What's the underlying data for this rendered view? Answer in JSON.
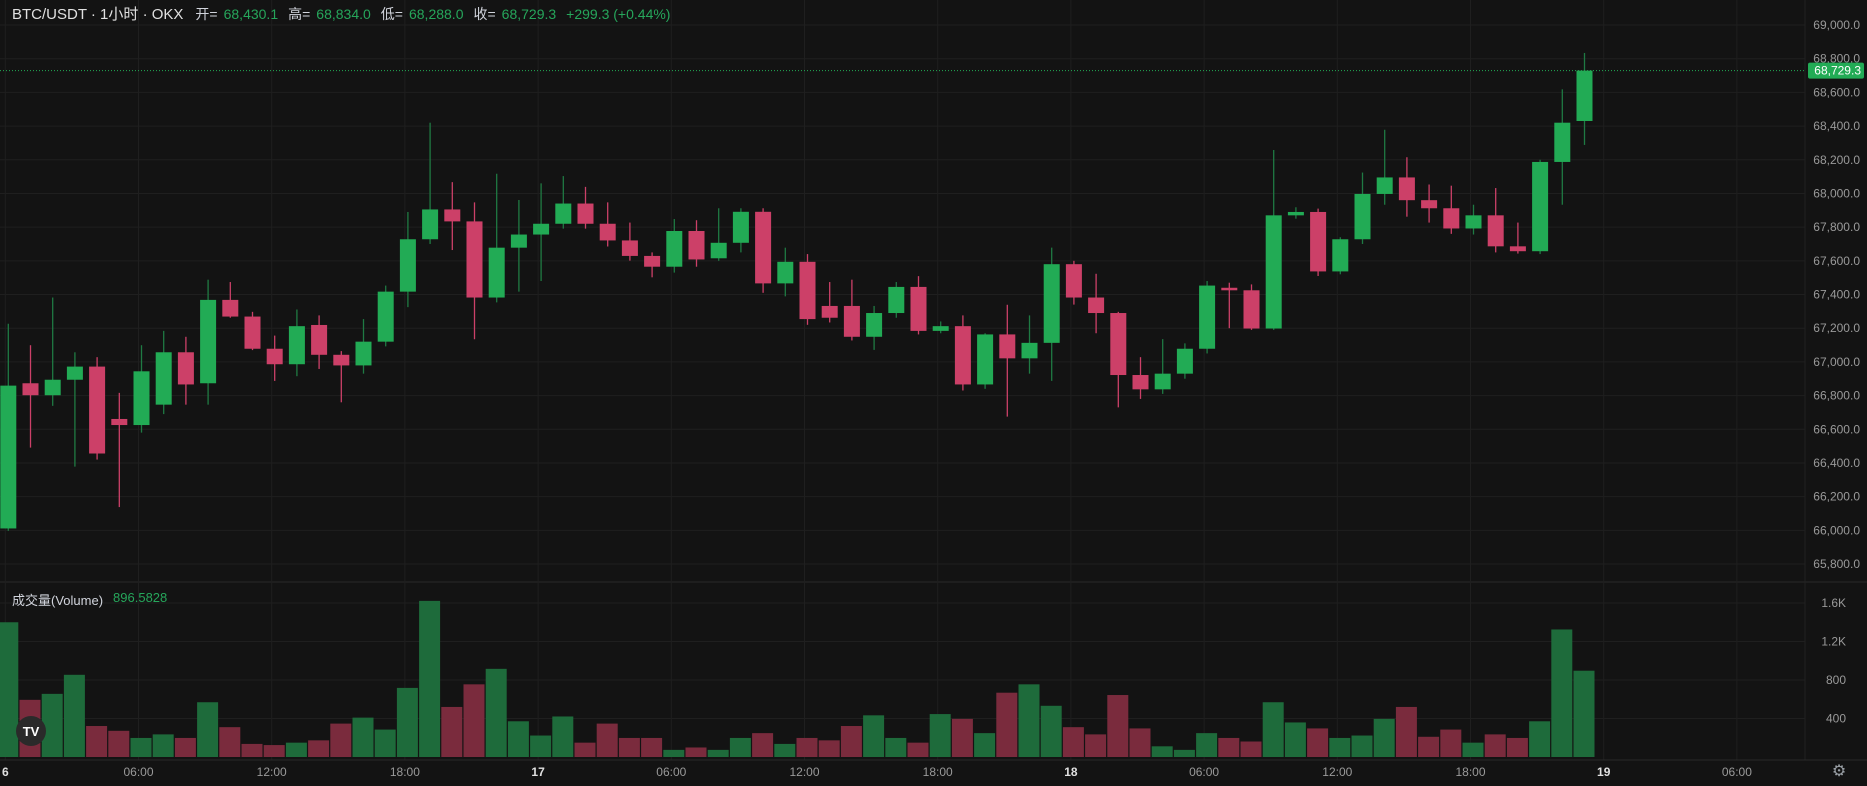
{
  "header": {
    "symbol": "BTC/USDT · 1小时 · OKX",
    "open_label": "开=",
    "open": "68,430.1",
    "high_label": "高=",
    "high": "68,834.0",
    "low_label": "低=",
    "low": "68,288.0",
    "close_label": "收=",
    "close": "68,729.3",
    "change": "+299.3 (+0.44%)"
  },
  "volume_legend": {
    "label": "成交量(Volume)",
    "value": "896.5828"
  },
  "logo": "TV",
  "icons": {
    "settings": "gear-icon",
    "logo": "tradingview-logo"
  },
  "colors": {
    "up": "#22ab55",
    "down": "#cc4068",
    "up_volume": "#1e6b3b",
    "down_volume": "#7a2b3d",
    "background": "#131313",
    "last_price": "#22ab55"
  },
  "chart_data": {
    "type": "candlestick",
    "price_axis": {
      "range": [
        65700,
        69080
      ],
      "ticks": [
        65800,
        66000,
        66200,
        66400,
        66600,
        66800,
        67000,
        67200,
        67400,
        67600,
        67800,
        68000,
        68200,
        68400,
        68600,
        68800,
        69000
      ],
      "tick_labels": [
        "65,800.0",
        "66,000.0",
        "66,200.0",
        "66,400.0",
        "66,600.0",
        "66,800.0",
        "67,000.0",
        "67,200.0",
        "67,400.0",
        "67,600.0",
        "67,800.0",
        "68,000.0",
        "68,200.0",
        "68,400.0",
        "68,600.0",
        "68,800.0",
        "69,000.0"
      ]
    },
    "volume_axis": {
      "range": [
        0,
        1900
      ],
      "ticks": [
        400,
        800,
        1200,
        1600
      ],
      "tick_labels": [
        "400",
        "800",
        "1.2K",
        "1.6K"
      ]
    },
    "time_axis": {
      "labels": [
        {
          "hour": 0,
          "text": "6"
        },
        {
          "hour": 6,
          "text": "06:00"
        },
        {
          "hour": 12,
          "text": "12:00"
        },
        {
          "hour": 18,
          "text": "18:00"
        },
        {
          "hour": 24,
          "text": "17"
        },
        {
          "hour": 30,
          "text": "06:00"
        },
        {
          "hour": 36,
          "text": "12:00"
        },
        {
          "hour": 42,
          "text": "18:00"
        },
        {
          "hour": 48,
          "text": "18"
        },
        {
          "hour": 54,
          "text": "06:00"
        },
        {
          "hour": 60,
          "text": "12:00"
        },
        {
          "hour": 66,
          "text": "18:00"
        },
        {
          "hour": 72,
          "text": "19"
        },
        {
          "hour": 78,
          "text": "06:00"
        }
      ]
    },
    "last_price": {
      "value": 68729.3,
      "label": "68,729.3"
    },
    "grid": true,
    "candles": [
      {
        "o": 66011,
        "h": 67226,
        "l": 65997,
        "c": 66859,
        "v": 1400
      },
      {
        "o": 66873,
        "h": 67099,
        "l": 66491,
        "c": 66802,
        "v": 594
      },
      {
        "o": 66802,
        "h": 67382,
        "l": 66739,
        "c": 66894,
        "v": 656
      },
      {
        "o": 66894,
        "h": 67057,
        "l": 66378,
        "c": 66972,
        "v": 854
      },
      {
        "o": 66972,
        "h": 67028,
        "l": 66420,
        "c": 66456,
        "v": 322
      },
      {
        "o": 66661,
        "h": 66816,
        "l": 66138,
        "c": 66625,
        "v": 272
      },
      {
        "o": 66625,
        "h": 67099,
        "l": 66580,
        "c": 66944,
        "v": 198
      },
      {
        "o": 66746,
        "h": 67184,
        "l": 66690,
        "c": 67057,
        "v": 235
      },
      {
        "o": 67057,
        "h": 67149,
        "l": 66746,
        "c": 66866,
        "v": 198
      },
      {
        "o": 66873,
        "h": 67488,
        "l": 66746,
        "c": 67368,
        "v": 569
      },
      {
        "o": 67368,
        "h": 67474,
        "l": 67262,
        "c": 67269,
        "v": 310
      },
      {
        "o": 67269,
        "h": 67297,
        "l": 67070,
        "c": 67078,
        "v": 136
      },
      {
        "o": 67078,
        "h": 67156,
        "l": 66887,
        "c": 66986,
        "v": 124
      },
      {
        "o": 66986,
        "h": 67311,
        "l": 66915,
        "c": 67212,
        "v": 149
      },
      {
        "o": 67219,
        "h": 67276,
        "l": 66958,
        "c": 67042,
        "v": 173
      },
      {
        "o": 67042,
        "h": 67064,
        "l": 66760,
        "c": 66979,
        "v": 347
      },
      {
        "o": 66979,
        "h": 67254,
        "l": 66930,
        "c": 67120,
        "v": 409
      },
      {
        "o": 67120,
        "h": 67453,
        "l": 67092,
        "c": 67417,
        "v": 285
      },
      {
        "o": 67417,
        "h": 67890,
        "l": 67325,
        "c": 67728,
        "v": 718
      },
      {
        "o": 67728,
        "h": 68420,
        "l": 67700,
        "c": 67905,
        "v": 1622
      },
      {
        "o": 67905,
        "h": 68067,
        "l": 67664,
        "c": 67834,
        "v": 520
      },
      {
        "o": 67834,
        "h": 67947,
        "l": 67134,
        "c": 67382,
        "v": 755
      },
      {
        "o": 67382,
        "h": 68117,
        "l": 67353,
        "c": 67678,
        "v": 916
      },
      {
        "o": 67678,
        "h": 67961,
        "l": 67417,
        "c": 67756,
        "v": 371
      },
      {
        "o": 67756,
        "h": 68060,
        "l": 67480,
        "c": 67820,
        "v": 223
      },
      {
        "o": 67820,
        "h": 68103,
        "l": 67791,
        "c": 67940,
        "v": 421
      },
      {
        "o": 67940,
        "h": 68039,
        "l": 67791,
        "c": 67820,
        "v": 149
      },
      {
        "o": 67820,
        "h": 67947,
        "l": 67685,
        "c": 67721,
        "v": 347
      },
      {
        "o": 67721,
        "h": 67827,
        "l": 67601,
        "c": 67629,
        "v": 198
      },
      {
        "o": 67629,
        "h": 67650,
        "l": 67502,
        "c": 67565,
        "v": 198
      },
      {
        "o": 67565,
        "h": 67848,
        "l": 67530,
        "c": 67777,
        "v": 74
      },
      {
        "o": 67777,
        "h": 67841,
        "l": 67565,
        "c": 67608,
        "v": 99
      },
      {
        "o": 67615,
        "h": 67912,
        "l": 67600,
        "c": 67707,
        "v": 74
      },
      {
        "o": 67707,
        "h": 67912,
        "l": 67650,
        "c": 67891,
        "v": 198
      },
      {
        "o": 67891,
        "h": 67912,
        "l": 67410,
        "c": 67466,
        "v": 248
      },
      {
        "o": 67466,
        "h": 67678,
        "l": 67389,
        "c": 67594,
        "v": 136
      },
      {
        "o": 67594,
        "h": 67640,
        "l": 67220,
        "c": 67254,
        "v": 198
      },
      {
        "o": 67332,
        "h": 67474,
        "l": 67234,
        "c": 67262,
        "v": 173
      },
      {
        "o": 67332,
        "h": 67488,
        "l": 67127,
        "c": 67149,
        "v": 322
      },
      {
        "o": 67149,
        "h": 67332,
        "l": 67071,
        "c": 67290,
        "v": 433
      },
      {
        "o": 67290,
        "h": 67474,
        "l": 67262,
        "c": 67445,
        "v": 198
      },
      {
        "o": 67445,
        "h": 67509,
        "l": 67163,
        "c": 67184,
        "v": 149
      },
      {
        "o": 67184,
        "h": 67240,
        "l": 67170,
        "c": 67212,
        "v": 446
      },
      {
        "o": 67212,
        "h": 67276,
        "l": 66830,
        "c": 66866,
        "v": 396
      },
      {
        "o": 66866,
        "h": 67170,
        "l": 66840,
        "c": 67163,
        "v": 248
      },
      {
        "o": 67163,
        "h": 67339,
        "l": 66675,
        "c": 67021,
        "v": 668
      },
      {
        "o": 67021,
        "h": 67276,
        "l": 66930,
        "c": 67113,
        "v": 755
      },
      {
        "o": 67113,
        "h": 67678,
        "l": 66887,
        "c": 67580,
        "v": 532
      },
      {
        "o": 67580,
        "h": 67600,
        "l": 67340,
        "c": 67382,
        "v": 310
      },
      {
        "o": 67382,
        "h": 67523,
        "l": 67170,
        "c": 67290,
        "v": 235
      },
      {
        "o": 67290,
        "h": 67297,
        "l": 66730,
        "c": 66922,
        "v": 644
      },
      {
        "o": 66922,
        "h": 67028,
        "l": 66780,
        "c": 66837,
        "v": 297
      },
      {
        "o": 66837,
        "h": 67135,
        "l": 66810,
        "c": 66930,
        "v": 111
      },
      {
        "o": 66930,
        "h": 67110,
        "l": 66900,
        "c": 67078,
        "v": 74
      },
      {
        "o": 67078,
        "h": 67480,
        "l": 67050,
        "c": 67453,
        "v": 248
      },
      {
        "o": 67440,
        "h": 67470,
        "l": 67200,
        "c": 67425,
        "v": 198
      },
      {
        "o": 67425,
        "h": 67460,
        "l": 67190,
        "c": 67198,
        "v": 161
      },
      {
        "o": 67198,
        "h": 68258,
        "l": 67190,
        "c": 67870,
        "v": 569
      },
      {
        "o": 67870,
        "h": 67918,
        "l": 67850,
        "c": 67890,
        "v": 359
      },
      {
        "o": 67890,
        "h": 67910,
        "l": 67510,
        "c": 67537,
        "v": 297
      },
      {
        "o": 67537,
        "h": 67740,
        "l": 67520,
        "c": 67728,
        "v": 198
      },
      {
        "o": 67728,
        "h": 68124,
        "l": 67700,
        "c": 67997,
        "v": 223
      },
      {
        "o": 67997,
        "h": 68378,
        "l": 67933,
        "c": 68095,
        "v": 396
      },
      {
        "o": 68095,
        "h": 68215,
        "l": 67862,
        "c": 67960,
        "v": 520
      },
      {
        "o": 67960,
        "h": 68053,
        "l": 67827,
        "c": 67912,
        "v": 210
      },
      {
        "o": 67912,
        "h": 68046,
        "l": 67760,
        "c": 67792,
        "v": 285
      },
      {
        "o": 67792,
        "h": 67933,
        "l": 67756,
        "c": 67870,
        "v": 149
      },
      {
        "o": 67870,
        "h": 68032,
        "l": 67650,
        "c": 67686,
        "v": 235
      },
      {
        "o": 67686,
        "h": 67827,
        "l": 67643,
        "c": 67657,
        "v": 198
      },
      {
        "o": 67657,
        "h": 68200,
        "l": 67640,
        "c": 68187,
        "v": 371
      },
      {
        "o": 68187,
        "h": 68618,
        "l": 67933,
        "c": 68420,
        "v": 1325
      },
      {
        "o": 68430.1,
        "h": 68834.0,
        "l": 68288.0,
        "c": 68729.3,
        "v": 896.5828
      }
    ]
  }
}
